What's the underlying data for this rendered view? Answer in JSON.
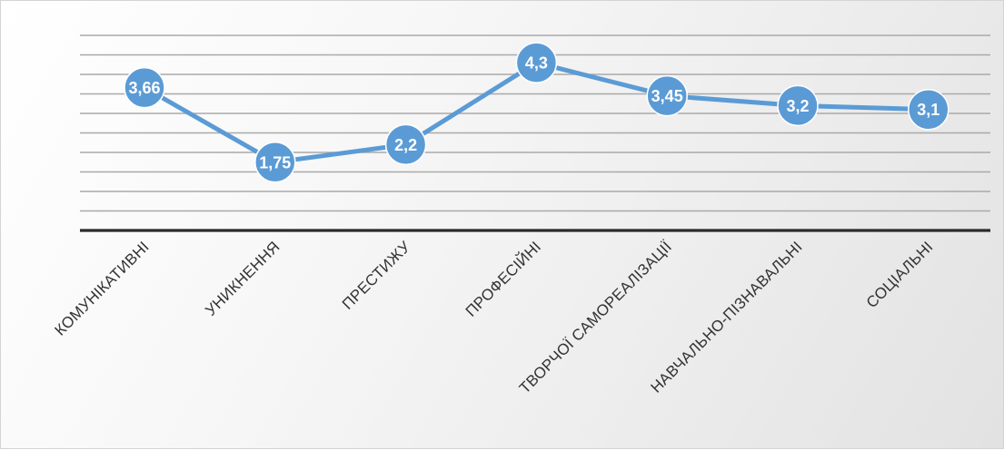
{
  "chart_data": {
    "type": "line",
    "title": "",
    "xlabel": "",
    "ylabel": "",
    "categories": [
      "КОМУНІКАТИВНІ",
      "УНИКНЕННЯ",
      "ПРЕСТИЖУ",
      "ПРОФЕСІЙНІ",
      "ТВОРЧОЇ САМОРЕАЛІЗАЦІЇ",
      "НАВЧАЛЬНО-ПІЗНАВАЛЬНІ",
      "СОЦІАЛЬНІ"
    ],
    "series": [
      {
        "values": [
          3.66,
          1.75,
          2.2,
          4.3,
          3.45,
          3.2,
          3.1
        ],
        "data_labels": [
          "3,66",
          "1,75",
          "2,2",
          "4,3",
          "3,45",
          "3,2",
          "3,1"
        ],
        "color": "#5b9bd5"
      }
    ],
    "ylim": [
      0,
      5
    ],
    "y_axis_visible": false,
    "grid": true,
    "data_labels_position": "inside-markers",
    "tick_label_rotation": "diagonal",
    "legend": "none"
  }
}
